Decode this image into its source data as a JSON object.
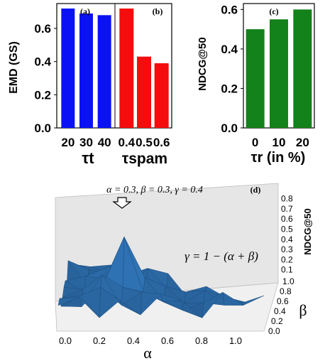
{
  "chart_data": [
    {
      "panel": "(a)",
      "type": "bar",
      "categories": [
        "20",
        "30",
        "40"
      ],
      "values": [
        0.72,
        0.69,
        0.68
      ],
      "color": "#0a12f5",
      "ylabel": "EMD (GS)",
      "xlabel": "τt",
      "ylim": [
        0.0,
        0.75
      ],
      "yticks": [
        "0.0",
        "0.2",
        "0.4",
        "0.6"
      ]
    },
    {
      "panel": "(b)",
      "type": "bar",
      "categories": [
        "0.4",
        "0.5",
        "0.6"
      ],
      "values": [
        0.72,
        0.43,
        0.39
      ],
      "color": "#f50d0d",
      "xlabel": "τspam",
      "ylim": [
        0.0,
        0.75
      ]
    },
    {
      "panel": "(c)",
      "type": "bar",
      "categories": [
        "0",
        "10",
        "20"
      ],
      "values": [
        0.5,
        0.55,
        0.6
      ],
      "color": "#13821a",
      "ylabel": "NDCG@50",
      "xlabel": "τr (in %)",
      "ylim": [
        0.0,
        0.63
      ],
      "yticks": [
        "0.0",
        "0.2",
        "0.4",
        "0.6"
      ]
    },
    {
      "panel": "(d)",
      "type": "surface",
      "xlabel": "α",
      "ylabel": "β",
      "zlabel": "NDCG@50",
      "xticks": [
        "0.0",
        "0.2",
        "0.4",
        "0.6",
        "0.8",
        "1.0"
      ],
      "yticks": [
        "0.0",
        "0.2",
        "0.4",
        "0.6",
        "0.8",
        "1.0"
      ],
      "zticks": [
        "0.1",
        "0.2",
        "0.3",
        "0.4",
        "0.5",
        "0.6",
        "0.7",
        "0.8"
      ],
      "zlim": [
        0.0,
        0.8
      ],
      "surface_color": "#2f73b5",
      "peak": {
        "alpha": 0.3,
        "beta": 0.3,
        "gamma": 0.4,
        "ndcg": 0.7
      },
      "peak_label": "α = 0.3, β = 0.3, γ = 0.4",
      "equation": "γ = 1 − (α + β)"
    }
  ]
}
